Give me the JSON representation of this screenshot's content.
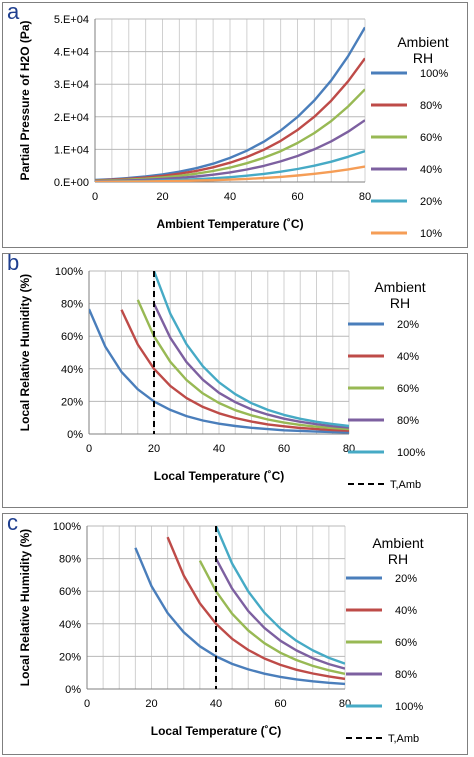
{
  "panels": {
    "a": {
      "letter": "a"
    },
    "b": {
      "letter": "b"
    },
    "c": {
      "letter": "c"
    }
  },
  "chart_data": [
    {
      "type": "line",
      "panel": "a",
      "xlabel": "Ambient Temperature (˚C)",
      "ylabel": "Partial Pressure of H2O (Pa)",
      "xlim": [
        0,
        80
      ],
      "ylim": [
        0,
        50000
      ],
      "xticks": [
        0,
        20,
        40,
        60,
        80
      ],
      "yticks": [
        0,
        10000,
        20000,
        30000,
        40000,
        50000
      ],
      "ytick_labels": [
        "0.E+00",
        "1.E+04",
        "2.E+04",
        "3.E+04",
        "4.E+04",
        "5.E+04"
      ],
      "grid": true,
      "legend_title_lines": [
        "Ambient",
        "RH"
      ],
      "legend_placement": "right",
      "x": [
        0,
        5,
        10,
        15,
        20,
        25,
        30,
        35,
        40,
        45,
        50,
        55,
        60,
        65,
        70,
        75,
        80
      ],
      "series": [
        {
          "name": "100%",
          "color": "#4a7ebb",
          "values": [
            611,
            872,
            1228,
            1705,
            2339,
            3169,
            4246,
            5627,
            7384,
            9595,
            12352,
            15762,
            19946,
            25041,
            31201,
            38595,
            47414
          ]
        },
        {
          "name": "80%",
          "color": "#be4b48",
          "values": [
            489,
            698,
            982,
            1364,
            1871,
            2535,
            3397,
            4502,
            5907,
            7676,
            9882,
            12610,
            15957,
            20033,
            24961,
            30876,
            37931
          ]
        },
        {
          "name": "60%",
          "color": "#98b954",
          "values": [
            367,
            523,
            737,
            1023,
            1403,
            1901,
            2548,
            3376,
            4430,
            5757,
            7411,
            9457,
            11968,
            15025,
            18721,
            23157,
            28448
          ]
        },
        {
          "name": "40%",
          "color": "#7d60a0",
          "values": [
            244,
            349,
            491,
            682,
            936,
            1268,
            1698,
            2251,
            2954,
            3838,
            4941,
            6305,
            7978,
            10016,
            12480,
            15438,
            18966
          ]
        },
        {
          "name": "20%",
          "color": "#46aac5",
          "values": [
            122,
            174,
            246,
            341,
            468,
            634,
            849,
            1125,
            1477,
            1919,
            2470,
            3152,
            3989,
            5008,
            6240,
            7719,
            9483
          ]
        },
        {
          "name": "10%",
          "color": "#f59d56",
          "values": [
            61,
            87,
            123,
            171,
            234,
            317,
            425,
            563,
            738,
            960,
            1235,
            1576,
            1995,
            2504,
            3120,
            3860,
            4741
          ]
        }
      ]
    },
    {
      "type": "line",
      "panel": "b",
      "xlabel": "Local Temperature (˚C)",
      "ylabel": "Local Relative Humidity (%)",
      "xlim": [
        0,
        80
      ],
      "ylim": [
        0,
        100
      ],
      "xticks": [
        0,
        20,
        40,
        60,
        80
      ],
      "yticks": [
        0,
        20,
        40,
        60,
        80,
        100
      ],
      "ytick_labels": [
        "0%",
        "20%",
        "40%",
        "60%",
        "80%",
        "100%"
      ],
      "grid": true,
      "legend_title_lines": [
        "Ambient",
        "RH"
      ],
      "legend_placement": "right",
      "x": [
        0,
        5,
        10,
        15,
        20,
        25,
        30,
        35,
        40,
        45,
        50,
        55,
        60,
        65,
        70,
        75,
        80
      ],
      "series": [
        {
          "name": "20%",
          "color": "#4a7ebb",
          "values": [
            76.6,
            53.6,
            38.1,
            27.4,
            20.0,
            14.8,
            11.0,
            8.3,
            6.3,
            4.9,
            3.8,
            3.0,
            2.3,
            1.9,
            1.5,
            1.2,
            1.0
          ]
        },
        {
          "name": "40%",
          "color": "#be4b48",
          "values": [
            null,
            null,
            76.2,
            54.9,
            40.0,
            29.5,
            22.0,
            16.6,
            12.7,
            9.8,
            7.6,
            5.9,
            4.7,
            3.7,
            3.0,
            2.4,
            2.0
          ]
        },
        {
          "name": "60%",
          "color": "#98b954",
          "values": [
            null,
            null,
            null,
            82.3,
            60.0,
            44.3,
            33.1,
            24.9,
            19.0,
            14.6,
            11.4,
            8.9,
            7.0,
            5.6,
            4.5,
            3.6,
            3.0
          ]
        },
        {
          "name": "80%",
          "color": "#7d60a0",
          "values": [
            null,
            null,
            null,
            null,
            80.0,
            59.0,
            44.1,
            33.3,
            25.3,
            19.5,
            15.1,
            11.9,
            9.4,
            7.5,
            6.0,
            4.8,
            3.9
          ]
        },
        {
          "name": "100%",
          "color": "#46aac5",
          "values": [
            null,
            null,
            null,
            null,
            100.0,
            73.8,
            55.1,
            41.6,
            31.7,
            24.4,
            18.9,
            14.8,
            11.7,
            9.3,
            7.5,
            6.1,
            4.9
          ]
        }
      ],
      "vertical_line": {
        "name": "T,Amb",
        "x": 20
      }
    },
    {
      "type": "line",
      "panel": "c",
      "xlabel": "Local Temperature (˚C)",
      "ylabel": "Local Relative Humidity (%)",
      "xlim": [
        0,
        80
      ],
      "ylim": [
        0,
        100
      ],
      "xticks": [
        0,
        20,
        40,
        60,
        80
      ],
      "yticks": [
        0,
        20,
        40,
        60,
        80,
        100
      ],
      "ytick_labels": [
        "0%",
        "20%",
        "40%",
        "60%",
        "80%",
        "100%"
      ],
      "grid": true,
      "legend_title_lines": [
        "Ambient",
        "RH"
      ],
      "legend_placement": "right",
      "x": [
        0,
        5,
        10,
        15,
        20,
        25,
        30,
        35,
        40,
        45,
        50,
        55,
        60,
        65,
        70,
        75,
        80
      ],
      "series": [
        {
          "name": "20%",
          "color": "#4a7ebb",
          "values": [
            null,
            null,
            null,
            86.6,
            63.1,
            46.6,
            34.8,
            26.2,
            20.0,
            15.4,
            12.0,
            9.4,
            7.4,
            5.9,
            4.7,
            3.8,
            3.1
          ]
        },
        {
          "name": "40%",
          "color": "#be4b48",
          "values": [
            null,
            null,
            null,
            null,
            null,
            93.2,
            69.6,
            52.5,
            40.0,
            30.8,
            23.9,
            18.7,
            14.8,
            11.8,
            9.5,
            7.7,
            6.2
          ]
        },
        {
          "name": "60%",
          "color": "#98b954",
          "values": [
            null,
            null,
            null,
            null,
            null,
            null,
            null,
            78.7,
            60.0,
            46.2,
            35.9,
            28.1,
            22.2,
            17.7,
            14.2,
            11.5,
            9.3
          ]
        },
        {
          "name": "80%",
          "color": "#7d60a0",
          "values": [
            null,
            null,
            null,
            null,
            null,
            null,
            null,
            null,
            80.0,
            61.6,
            47.8,
            37.5,
            29.6,
            23.6,
            18.9,
            15.3,
            12.5
          ]
        },
        {
          "name": "100%",
          "color": "#46aac5",
          "values": [
            null,
            null,
            null,
            null,
            null,
            null,
            null,
            null,
            100.0,
            77.0,
            59.8,
            46.8,
            37.0,
            29.5,
            23.7,
            19.1,
            15.6
          ]
        }
      ],
      "vertical_line": {
        "name": "T,Amb",
        "x": 40
      }
    }
  ]
}
